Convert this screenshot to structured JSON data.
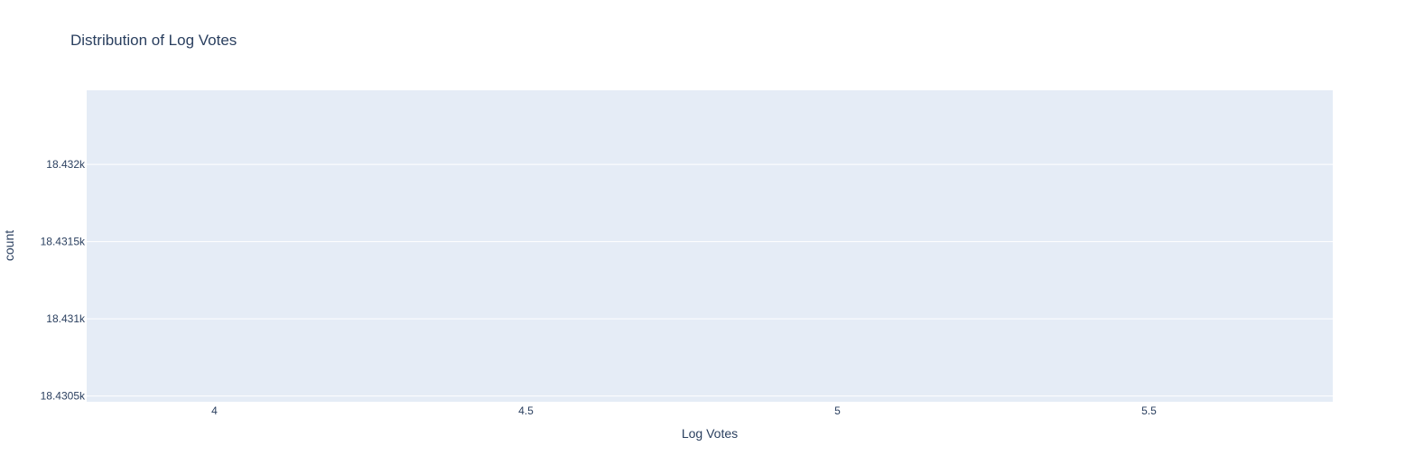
{
  "chart_data": {
    "type": "bar",
    "title": "Distribution of Log Votes",
    "xlabel": "Log Votes",
    "ylabel": "count",
    "xlim": [
      3.795,
      5.795
    ],
    "ylim": [
      18430.463,
      18432.48
    ],
    "x_ticks": [
      {
        "value": 4,
        "label": "4"
      },
      {
        "value": 4.5,
        "label": "4.5"
      },
      {
        "value": 5,
        "label": "5"
      },
      {
        "value": 5.5,
        "label": "5.5"
      }
    ],
    "y_ticks": [
      {
        "value": 18430.5,
        "label": "18.4305k"
      },
      {
        "value": 18431,
        "label": "18.431k"
      },
      {
        "value": 18431.5,
        "label": "18.4315k"
      },
      {
        "value": 18432,
        "label": "18.432k"
      }
    ],
    "series": [],
    "grid": true,
    "colors": {
      "plot_background": "#e5ecf6",
      "grid": "#ffffff",
      "text": "#2a3f5f",
      "paper_background": "#ffffff"
    }
  }
}
